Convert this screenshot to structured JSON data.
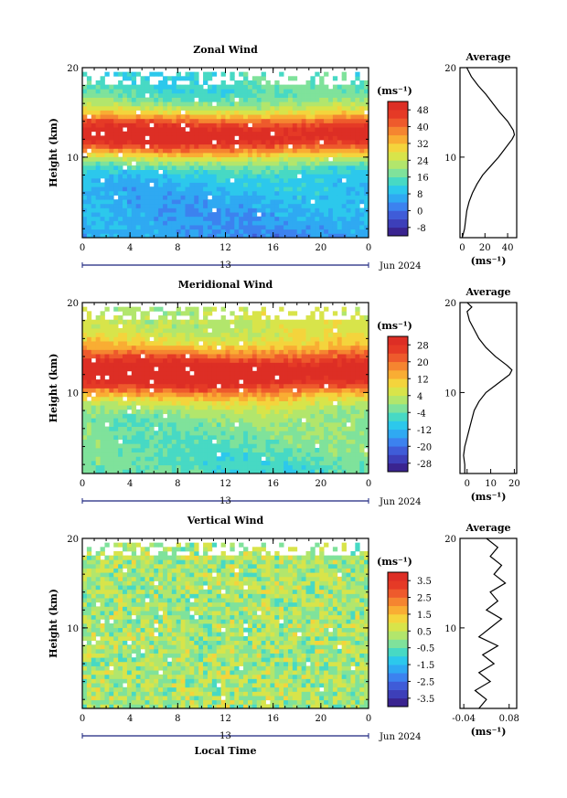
{
  "chart_data": [
    {
      "type": "heatmap",
      "title": "Zonal Wind",
      "ylabel": "Height (km)",
      "xlabel": "",
      "x_ticks": [
        "0",
        "4",
        "8",
        "12",
        "16",
        "20",
        "0"
      ],
      "y_ticks": [
        "10",
        "20"
      ],
      "date_ticks": [
        "13",
        "Jun 2024"
      ],
      "xlim": [
        0,
        24
      ],
      "ylim": [
        1,
        20
      ],
      "colorbar": {
        "unit": "(ms⁻¹)",
        "ticks": [
          "48",
          "40",
          "32",
          "24",
          "16",
          "8",
          "0",
          "-8"
        ],
        "min": -12,
        "max": 52
      },
      "field": {
        "jet_height": 12.5,
        "jet_speed": 52,
        "low_level_speed": 4,
        "upper_speed": 14
      },
      "average": {
        "title": "Average",
        "xlabel": "(ms⁻¹)",
        "x_ticks": [
          "0",
          "20",
          "40"
        ],
        "xlim": [
          -2,
          48
        ],
        "y_ticks": [
          "10",
          "20"
        ],
        "profile": [
          [
            1,
            0
          ],
          [
            2,
            2
          ],
          [
            3,
            3
          ],
          [
            4,
            4
          ],
          [
            5,
            6
          ],
          [
            6,
            9
          ],
          [
            7,
            13
          ],
          [
            8,
            18
          ],
          [
            9,
            25
          ],
          [
            10,
            32
          ],
          [
            11,
            38
          ],
          [
            12,
            44
          ],
          [
            12.5,
            46
          ],
          [
            13,
            45
          ],
          [
            14,
            40
          ],
          [
            15,
            33
          ],
          [
            16,
            27
          ],
          [
            17,
            21
          ],
          [
            18,
            14
          ],
          [
            19,
            8
          ],
          [
            20,
            4
          ]
        ]
      }
    },
    {
      "type": "heatmap",
      "title": "Meridional Wind",
      "ylabel": "Height (km)",
      "xlabel": "",
      "x_ticks": [
        "0",
        "4",
        "8",
        "12",
        "16",
        "20",
        "0"
      ],
      "y_ticks": [
        "10",
        "20"
      ],
      "date_ticks": [
        "13",
        "Jun 2024"
      ],
      "xlim": [
        0,
        24
      ],
      "ylim": [
        1,
        20
      ],
      "colorbar": {
        "unit": "(ms⁻¹)",
        "ticks": [
          "28",
          "20",
          "12",
          "4",
          "-4",
          "-12",
          "-20",
          "-28"
        ],
        "min": -32,
        "max": 32
      },
      "field": {
        "jet_height": 12.2,
        "jet_speed": 34,
        "low_level_speed": -6,
        "upper_speed": 4
      },
      "average": {
        "title": "Average",
        "xlabel": "(ms⁻¹)",
        "x_ticks": [
          "0",
          "10",
          "20"
        ],
        "xlim": [
          -3,
          21
        ],
        "y_ticks": [
          "10",
          "20"
        ],
        "profile": [
          [
            1,
            -1
          ],
          [
            2,
            -1
          ],
          [
            3,
            -1.5
          ],
          [
            4,
            -1
          ],
          [
            5,
            0
          ],
          [
            6,
            1
          ],
          [
            7,
            2
          ],
          [
            8,
            3
          ],
          [
            9,
            5
          ],
          [
            10,
            8
          ],
          [
            11,
            13
          ],
          [
            12,
            18
          ],
          [
            12.5,
            19
          ],
          [
            13,
            17
          ],
          [
            14,
            12
          ],
          [
            15,
            8
          ],
          [
            16,
            5
          ],
          [
            17,
            3
          ],
          [
            18,
            1
          ],
          [
            19,
            0
          ],
          [
            19.5,
            2
          ],
          [
            20,
            0
          ]
        ]
      }
    },
    {
      "type": "heatmap",
      "title": "Vertical Wind",
      "ylabel": "Height (km)",
      "xlabel": "Local Time",
      "x_ticks": [
        "0",
        "4",
        "8",
        "12",
        "16",
        "20",
        "0"
      ],
      "y_ticks": [
        "10",
        "20"
      ],
      "date_ticks": [
        "13",
        "Jun 2024"
      ],
      "xlim": [
        0,
        24
      ],
      "ylim": [
        1,
        20
      ],
      "colorbar": {
        "unit": "(ms⁻¹)",
        "ticks": [
          "3.5",
          "2.5",
          "1.5",
          "0.5",
          "-0.5",
          "-1.5",
          "-2.5",
          "-3.5"
        ],
        "min": -4,
        "max": 4
      },
      "field": {
        "jet_height": 0,
        "jet_speed": 0.2,
        "low_level_speed": 0,
        "upper_speed": 0.4
      },
      "average": {
        "title": "Average",
        "xlabel": "(ms⁻¹)",
        "x_ticks": [
          "-0.04",
          "0.08"
        ],
        "xlim": [
          -0.05,
          0.1
        ],
        "y_ticks": [
          "10",
          "20"
        ],
        "profile": [
          [
            1,
            0.0
          ],
          [
            2,
            0.02
          ],
          [
            3,
            -0.01
          ],
          [
            4,
            0.03
          ],
          [
            5,
            0.0
          ],
          [
            6,
            0.04
          ],
          [
            7,
            0.01
          ],
          [
            8,
            0.05
          ],
          [
            9,
            0.0
          ],
          [
            10,
            0.03
          ],
          [
            11,
            0.06
          ],
          [
            12,
            0.02
          ],
          [
            13,
            0.05
          ],
          [
            14,
            0.03
          ],
          [
            15,
            0.07
          ],
          [
            16,
            0.04
          ],
          [
            17,
            0.06
          ],
          [
            18,
            0.03
          ],
          [
            19,
            0.05
          ],
          [
            20,
            0.02
          ]
        ]
      }
    }
  ]
}
